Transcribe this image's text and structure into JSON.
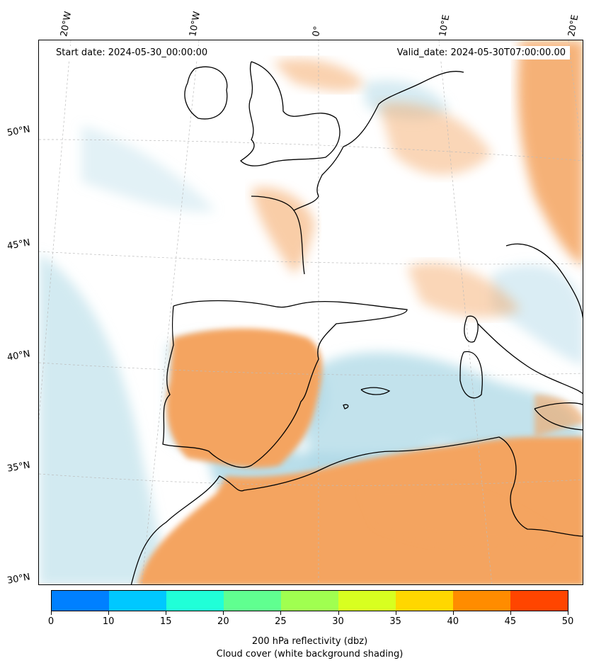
{
  "map": {
    "start_date": "Start date: 2024-05-30_00:00:00",
    "valid_date": "Valid_date: 2024-05-30T07:00:00.00",
    "longitude_labels": [
      "20°W",
      "10°W",
      "0°",
      "10°E",
      "20°E"
    ],
    "latitude_labels": [
      "50°N",
      "45°N",
      "40°N",
      "35°N",
      "30°N"
    ],
    "colors": {
      "dust_orange": "#f4a460",
      "cloud_blue": "#add8e6",
      "coastline": "#000000",
      "gridline": "#bbbbbb"
    }
  },
  "colorbar": {
    "title": "200 hPa reflectivity (dbz)",
    "subtitle": "Cloud cover (white background shading)",
    "ticks": [
      "0",
      "10",
      "15",
      "20",
      "25",
      "30",
      "35",
      "40",
      "45",
      "50"
    ],
    "colors": [
      "#0080ff",
      "#00c8ff",
      "#20ffd8",
      "#60ff90",
      "#a0ff50",
      "#d8ff20",
      "#ffd700",
      "#ff8c00",
      "#ff4500"
    ]
  }
}
